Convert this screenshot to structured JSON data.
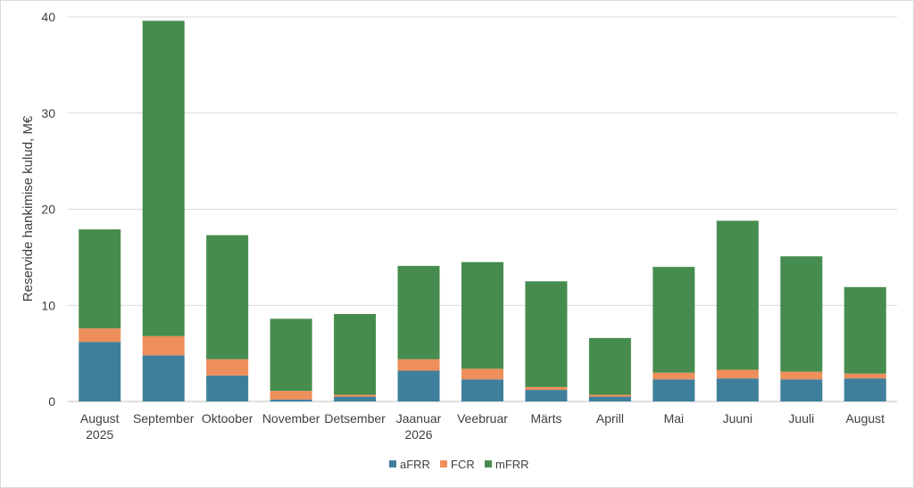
{
  "chart_data": {
    "type": "bar",
    "stacked": true,
    "ylabel": "Reservide hankimise kulud, M€",
    "xlabel": "",
    "title": "",
    "ylim": [
      0,
      40
    ],
    "yticks": [
      "0",
      "10",
      "20",
      "30",
      "40"
    ],
    "grid": true,
    "legend_position": "bottom",
    "categories": [
      [
        "August",
        "2025"
      ],
      [
        "September"
      ],
      [
        "Oktoober"
      ],
      [
        "November"
      ],
      [
        "Detsember"
      ],
      [
        "Jaanuar",
        "2026"
      ],
      [
        "Veebruar"
      ],
      [
        "Märts"
      ],
      [
        "Aprill"
      ],
      [
        "Mai"
      ],
      [
        "Juuni"
      ],
      [
        "Juuli"
      ],
      [
        "August"
      ]
    ],
    "series": [
      {
        "name": "aFRR",
        "color": "#3f7f9c",
        "values": [
          6.2,
          4.8,
          2.7,
          0.2,
          0.5,
          3.2,
          2.3,
          1.2,
          0.5,
          2.3,
          2.4,
          2.3,
          2.4
        ]
      },
      {
        "name": "FCR",
        "color": "#ee8e5a",
        "values": [
          1.4,
          2.0,
          1.7,
          0.9,
          0.2,
          1.2,
          1.1,
          0.3,
          0.2,
          0.7,
          0.9,
          0.8,
          0.5
        ]
      },
      {
        "name": "mFRR",
        "color": "#468c4e",
        "values": [
          10.3,
          32.8,
          12.9,
          7.5,
          8.4,
          9.7,
          11.1,
          11.0,
          5.9,
          11.0,
          15.5,
          12.0,
          9.0
        ]
      }
    ]
  }
}
